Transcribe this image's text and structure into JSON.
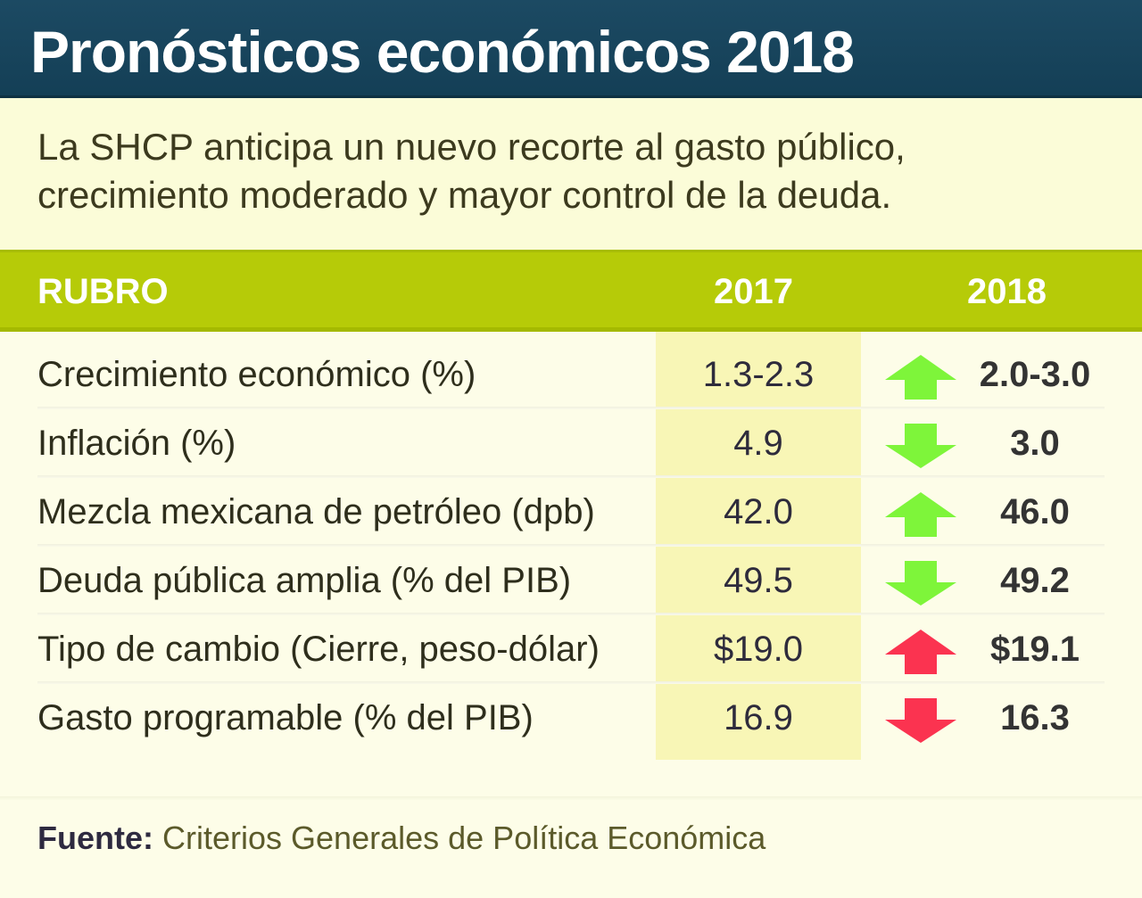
{
  "header": {
    "title": "Pronósticos económicos 2018",
    "subtitle": "La SHCP anticipa un nuevo recorte al gasto público, crecimiento moderado y mayor control de la deuda."
  },
  "table": {
    "columns": [
      "RUBRO",
      "2017",
      "2018"
    ],
    "rows": [
      {
        "label": "Crecimiento económico (%)",
        "v2017": "1.3-2.3",
        "v2018": "2.0-3.0",
        "trend": "up",
        "trend_color": "#7ef53a"
      },
      {
        "label": "Inflación (%)",
        "v2017": "4.9",
        "v2018": "3.0",
        "trend": "down",
        "trend_color": "#7ef53a"
      },
      {
        "label": "Mezcla mexicana de petróleo (dpb)",
        "v2017": "42.0",
        "v2018": "46.0",
        "trend": "up",
        "trend_color": "#7ef53a"
      },
      {
        "label": "Deuda pública amplia (% del PIB)",
        "v2017": "49.5",
        "v2018": "49.2",
        "trend": "down",
        "trend_color": "#7ef53a"
      },
      {
        "label": "Tipo de cambio (Cierre, peso-dólar)",
        "v2017": "$19.0",
        "v2018": "$19.1",
        "trend": "up",
        "trend_color": "#fb3350"
      },
      {
        "label": "Gasto programable (% del PIB)",
        "v2017": "16.9",
        "v2018": "16.3",
        "trend": "down",
        "trend_color": "#fb3350"
      }
    ]
  },
  "footer": {
    "source_label": "Fuente:",
    "source_text": "Criterios Generales de Política Económica"
  },
  "colors": {
    "title_bar": "#1a4760",
    "header_bar": "#b6cb08",
    "positive": "#7ef53a",
    "negative": "#fb3350",
    "highlight_2017": "#f8f6b6"
  }
}
